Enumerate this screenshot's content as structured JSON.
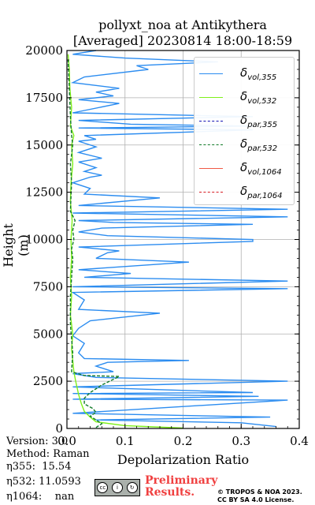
{
  "title_line1": "pollyxt_noa at Antikythera",
  "title_line2": "[Averaged] 20230814 18:00-18:59",
  "info": {
    "version": "Version: 3.0",
    "method": "Method: Raman",
    "eta355": "η355:  15.54",
    "eta532": "η532: 11.0593",
    "eta1064": "η1064:    nan"
  },
  "prelim": "Preliminary\nResults.",
  "credit_line1": "© TROPOS & NOA 2023.",
  "credit_line2": "CC BY SA 4.0 License.",
  "cc_icons": [
    "cc-icon",
    "by-icon",
    "sa-icon"
  ],
  "chart_data": {
    "type": "line",
    "xlabel": "Depolarization Ratio",
    "ylabel": "Height (m)",
    "xlim": [
      0,
      0.4
    ],
    "ylim": [
      0,
      20000
    ],
    "xticks": [
      0.0,
      0.1,
      0.2,
      0.3,
      0.4
    ],
    "yticks": [
      0,
      2500,
      5000,
      7500,
      10000,
      12500,
      15000,
      17500,
      20000
    ],
    "grid": true,
    "legend_position": "top-right",
    "series": [
      {
        "name": "δvol,355",
        "label_base": "δ",
        "label_sub": "vol,355",
        "color": "#2b8cf0",
        "style": "solid",
        "points": [
          [
            0.36,
            100
          ],
          [
            0.3,
            300
          ],
          [
            0.05,
            450
          ],
          [
            0.35,
            600
          ],
          [
            0.01,
            800
          ],
          [
            0.38,
            1500
          ],
          [
            0.01,
            1550
          ],
          [
            0.33,
            1700
          ],
          [
            0.01,
            1850
          ],
          [
            0.32,
            1900
          ],
          [
            0.01,
            2200
          ],
          [
            0.38,
            2500
          ],
          [
            0.05,
            2700
          ],
          [
            0.01,
            2900
          ],
          [
            0.08,
            3000
          ],
          [
            0.05,
            3300
          ],
          [
            0.07,
            3500
          ],
          [
            0.21,
            3600
          ],
          [
            0.03,
            3700
          ],
          [
            0.02,
            4000
          ],
          [
            0.03,
            4500
          ],
          [
            0.01,
            4900
          ],
          [
            0.02,
            5300
          ],
          [
            0.04,
            5700
          ],
          [
            0.16,
            6100
          ],
          [
            0.02,
            6300
          ],
          [
            0.03,
            6800
          ],
          [
            0.01,
            7200
          ],
          [
            0.38,
            7400
          ],
          [
            0.01,
            7500
          ],
          [
            0.38,
            7800
          ],
          [
            0.03,
            8000
          ],
          [
            0.11,
            8200
          ],
          [
            0.02,
            8400
          ],
          [
            0.21,
            8800
          ],
          [
            0.05,
            9000
          ],
          [
            0.07,
            9300
          ],
          [
            0.09,
            9400
          ],
          [
            0.02,
            9600
          ],
          [
            0.32,
            9900
          ],
          [
            0.32,
            10000
          ],
          [
            0.07,
            10200
          ],
          [
            0.02,
            10400
          ],
          [
            0.06,
            10600
          ],
          [
            0.32,
            10800
          ],
          [
            0.08,
            10900
          ],
          [
            0.02,
            11000
          ],
          [
            0.38,
            11200
          ],
          [
            0.01,
            11400
          ],
          [
            0.38,
            11600
          ],
          [
            0.02,
            11800
          ],
          [
            0.16,
            12200
          ],
          [
            0.03,
            12400
          ],
          [
            0.04,
            12700
          ],
          [
            0.01,
            13000
          ],
          [
            0.04,
            13300
          ],
          [
            0.06,
            13400
          ],
          [
            0.03,
            13600
          ],
          [
            0.05,
            13800
          ],
          [
            0.02,
            14100
          ],
          [
            0.06,
            14300
          ],
          [
            0.02,
            14600
          ],
          [
            0.05,
            14900
          ],
          [
            0.02,
            15200
          ],
          [
            0.05,
            15300
          ],
          [
            0.03,
            15500
          ],
          [
            0.32,
            15800
          ],
          [
            0.02,
            15900
          ],
          [
            0.32,
            16000
          ],
          [
            0.11,
            16100
          ],
          [
            0.02,
            16300
          ],
          [
            0.32,
            16500
          ],
          [
            0.01,
            16700
          ],
          [
            0.09,
            17200
          ],
          [
            0.02,
            17400
          ],
          [
            0.08,
            17600
          ],
          [
            0.05,
            17800
          ],
          [
            0.09,
            18000
          ],
          [
            0.01,
            18300
          ],
          [
            0.03,
            18600
          ],
          [
            0.14,
            19000
          ],
          [
            0.12,
            19200
          ],
          [
            0.26,
            19400
          ],
          [
            0.1,
            19600
          ],
          [
            0.01,
            19800
          ],
          [
            0.05,
            20000
          ]
        ]
      },
      {
        "name": "δvol,532",
        "label_base": "δ",
        "label_sub": "vol,532",
        "color": "#7ff01a",
        "style": "solid",
        "points": [
          [
            0.2,
            20
          ],
          [
            0.1,
            150
          ],
          [
            0.05,
            350
          ],
          [
            0.04,
            600
          ],
          [
            0.03,
            900
          ],
          [
            0.025,
            1300
          ],
          [
            0.02,
            1800
          ],
          [
            0.015,
            2500
          ],
          [
            0.012,
            3000
          ],
          [
            0.01,
            3600
          ],
          [
            0.008,
            4200
          ],
          [
            0.01,
            5000
          ],
          [
            0.006,
            6000
          ],
          [
            0.008,
            7000
          ],
          [
            0.006,
            8000
          ],
          [
            0.008,
            9000
          ],
          [
            0.007,
            10000
          ],
          [
            0.009,
            11000
          ],
          [
            0.006,
            12000
          ],
          [
            0.007,
            13000
          ],
          [
            0.01,
            14000
          ],
          [
            0.008,
            15000
          ],
          [
            0.012,
            15500
          ],
          [
            0.006,
            16000
          ],
          [
            0.008,
            17000
          ],
          [
            0.005,
            18000
          ],
          [
            0.004,
            19000
          ],
          [
            0.002,
            19800
          ]
        ]
      },
      {
        "name": "δpar,355",
        "label_base": "δ",
        "label_sub": "par,355",
        "color": "#1414b4",
        "style": "dashed",
        "points": []
      },
      {
        "name": "δpar,532",
        "label_base": "δ",
        "label_sub": "par,532",
        "color": "#107a28",
        "style": "dashed",
        "points": [
          [
            0.05,
            50
          ],
          [
            0.06,
            250
          ],
          [
            0.05,
            450
          ],
          [
            0.04,
            650
          ],
          [
            0.05,
            850
          ],
          [
            0.045,
            1050
          ],
          [
            0.03,
            1300
          ],
          [
            0.03,
            1600
          ],
          [
            0.04,
            1900
          ],
          [
            0.06,
            2300
          ],
          [
            0.09,
            2750
          ],
          [
            0.03,
            2800
          ],
          [
            0.008,
            3000
          ],
          [
            0.01,
            4000
          ],
          [
            0.006,
            5500
          ],
          [
            0.006,
            7000
          ],
          [
            0.008,
            8000
          ],
          [
            0.01,
            9000
          ],
          [
            0.008,
            9500
          ],
          [
            0.012,
            10000
          ],
          [
            0.01,
            10500
          ],
          [
            0.014,
            11000
          ],
          [
            0.006,
            11500
          ],
          [
            0.008,
            13000
          ],
          [
            0.006,
            14000
          ],
          [
            0.01,
            15000
          ],
          [
            0.008,
            15500
          ],
          [
            0.006,
            16500
          ],
          [
            0.004,
            18000
          ],
          [
            0.002,
            19500
          ]
        ]
      },
      {
        "name": "δvol,1064",
        "label_base": "δ",
        "label_sub": "vol,1064",
        "color": "#f05a46",
        "style": "solid",
        "points": []
      },
      {
        "name": "δpar,1064",
        "label_base": "δ",
        "label_sub": "par,1064",
        "color": "#d81c24",
        "style": "dashed",
        "points": []
      }
    ]
  }
}
